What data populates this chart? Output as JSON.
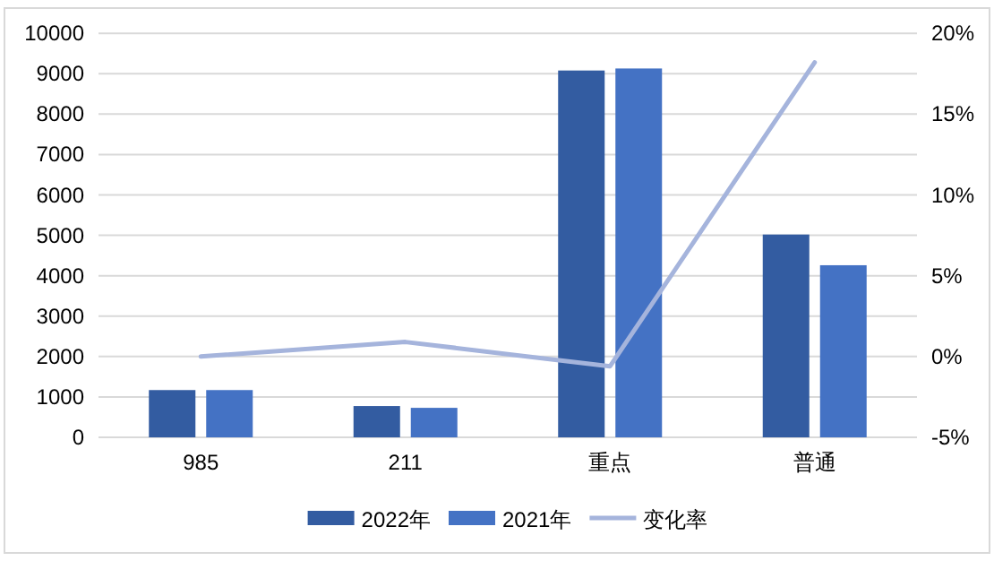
{
  "chart_data": {
    "type": "bar",
    "categories": [
      "985",
      "211",
      "重点",
      "普通"
    ],
    "series": [
      {
        "name": "2022年",
        "color": "#335ca1",
        "values": [
          1170,
          775,
          9080,
          5020
        ]
      },
      {
        "name": "2021年",
        "color": "#4472c4",
        "values": [
          1170,
          730,
          9130,
          4260
        ]
      },
      {
        "name": "变化率",
        "type": "line",
        "axis": "y2",
        "color": "#a5b4dc",
        "values": [
          0,
          0.9,
          -0.6,
          18.2
        ]
      }
    ],
    "ylim": [
      0,
      10000
    ],
    "yticks": [
      0,
      1000,
      2000,
      3000,
      4000,
      5000,
      6000,
      7000,
      8000,
      9000,
      10000
    ],
    "y2lim": [
      -5,
      20
    ],
    "y2ticks": [
      {
        "value": -5,
        "label": "-5%"
      },
      {
        "value": 0,
        "label": "0%"
      },
      {
        "value": 5,
        "label": "5%"
      },
      {
        "value": 10,
        "label": "10%"
      },
      {
        "value": 15,
        "label": "15%"
      },
      {
        "value": 20,
        "label": "20%"
      }
    ],
    "grid": "y",
    "legend": "bottom"
  }
}
